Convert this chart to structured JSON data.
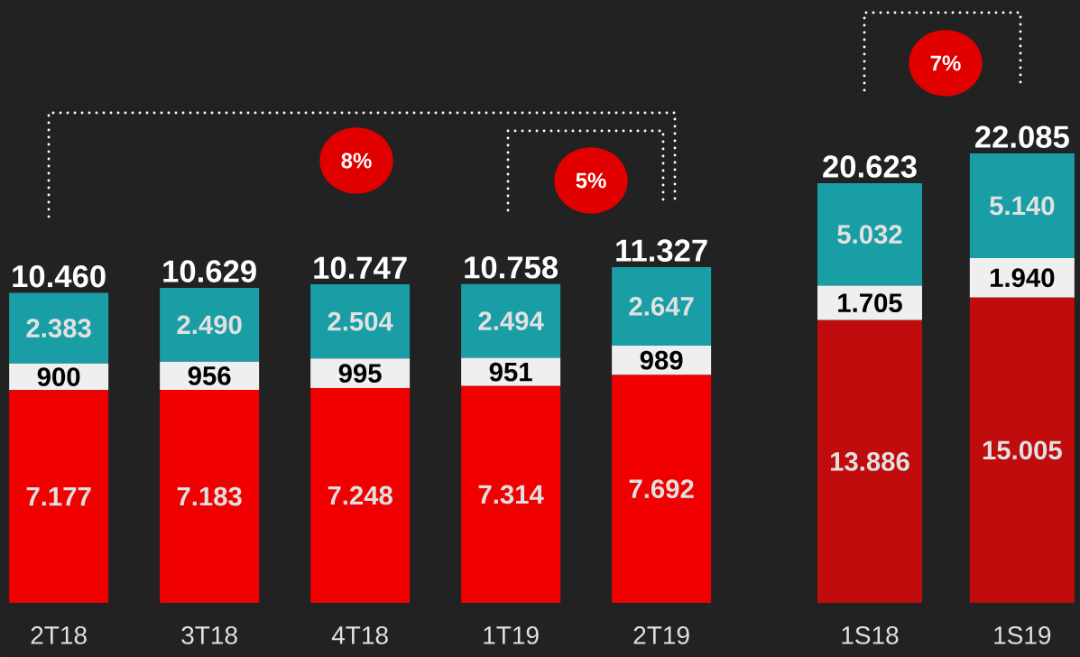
{
  "chart_data": [
    {
      "type": "bar",
      "stacked": true,
      "categories": [
        "2T18",
        "3T18",
        "4T18",
        "1T19",
        "2T19"
      ],
      "series": [
        {
          "color": "#f00000",
          "values": [
            7177,
            7183,
            7248,
            7314,
            7692
          ],
          "value_labels": [
            "7.177",
            "7.183",
            "7.248",
            "7.314",
            "7.692"
          ]
        },
        {
          "color": "#efefef",
          "values": [
            900,
            956,
            995,
            951,
            989
          ],
          "value_labels": [
            "900",
            "956",
            "995",
            "951",
            "989"
          ]
        },
        {
          "color": "#1a9ea6",
          "values": [
            2383,
            2490,
            2504,
            2494,
            2647
          ],
          "value_labels": [
            "2.383",
            "2.490",
            "2.504",
            "2.494",
            "2.647"
          ]
        }
      ],
      "totals": [
        "10.460",
        "10.629",
        "10.747",
        "10.758",
        "11.327"
      ],
      "annotations": [
        "8%",
        "5%"
      ]
    },
    {
      "type": "bar",
      "stacked": true,
      "categories": [
        "1S18",
        "1S19"
      ],
      "series": [
        {
          "color": "#c00c0c",
          "values": [
            13886,
            15005
          ],
          "value_labels": [
            "13.886",
            "15.005"
          ]
        },
        {
          "color": "#efefef",
          "values": [
            1705,
            1940
          ],
          "value_labels": [
            "1.705",
            "1.940"
          ]
        },
        {
          "color": "#1a9ea6",
          "values": [
            5032,
            5140
          ],
          "value_labels": [
            "5.032",
            "5.140"
          ]
        }
      ],
      "totals": [
        "20.623",
        "22.085"
      ],
      "annotations": [
        "7%"
      ]
    }
  ]
}
